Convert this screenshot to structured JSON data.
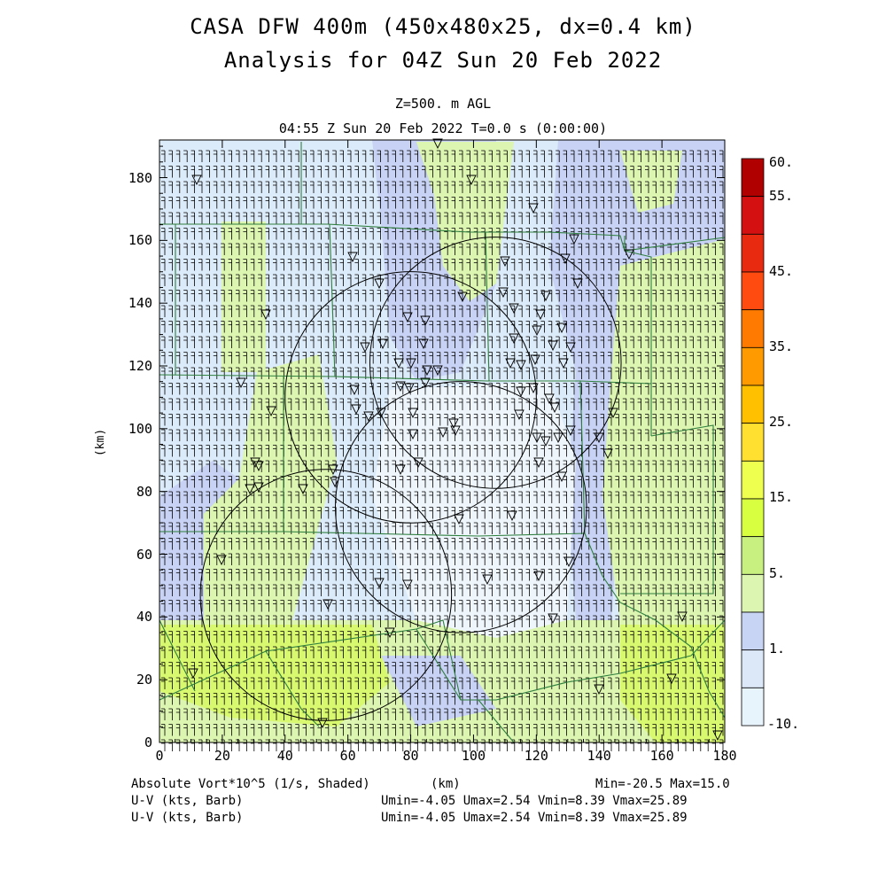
{
  "header": {
    "title_line1": "CASA DFW 400m (450x480x25, dx=0.4 km)",
    "title_line2": "Analysis for 04Z Sun 20 Feb 2022",
    "level": "Z=500. m AGL",
    "valid_time": "04:55 Z Sun 20 Feb 2022   T=0.0 s (0:00:00)"
  },
  "axes": {
    "x_label": "(km)",
    "y_label": "(km)",
    "x_range": [
      0,
      180
    ],
    "y_range": [
      0,
      192
    ],
    "x_ticks": [
      "0",
      "20",
      "40",
      "60",
      "80",
      "100",
      "120",
      "140",
      "160",
      "180"
    ],
    "y_ticks": [
      "0",
      "20",
      "40",
      "60",
      "80",
      "100",
      "120",
      "140",
      "160",
      "180"
    ]
  },
  "colorbar": {
    "labels": [
      "60.",
      "55.",
      "45.",
      "35.",
      "25.",
      "15.",
      "5.",
      "1.",
      "-10."
    ],
    "colors": [
      "#b00000",
      "#d41010",
      "#e82a10",
      "#ff4a10",
      "#ff7a00",
      "#ff9a00",
      "#ffc000",
      "#ffe030",
      "#eeff50",
      "#d8ff40",
      "#c8f080",
      "#dcf5b0",
      "#c8d4f4",
      "#dce8f8",
      "#e8f4fc"
    ],
    "unit": "Absolute Vort*10^5 (1/s)"
  },
  "footer": {
    "field_label": "Absolute Vort*10^5 (1/s, Shaded)",
    "axis_unit": "(km)",
    "minmax": "Min=-20.5 Max=15.0",
    "barb1_label": "U-V (kts, Barb)",
    "barb1_stats": "Umin=-4.05 Umax=2.54 Vmin=8.39 Vmax=25.89",
    "barb2_label": "U-V (kts, Barb)",
    "barb2_stats": "Umin=-4.05 Umax=2.54 Vmin=8.39 Vmax=25.89"
  },
  "radars": [
    {
      "name": "radar-range-ring-1",
      "center_km": [
        107,
        121
      ],
      "radius_km": 40
    },
    {
      "name": "radar-range-ring-2",
      "center_km": [
        80,
        110
      ],
      "radius_km": 40
    },
    {
      "name": "radar-range-ring-3",
      "center_km": [
        96,
        75
      ],
      "radius_km": 40
    },
    {
      "name": "radar-range-ring-4",
      "center_km": [
        53,
        47
      ],
      "radius_km": 40
    }
  ]
}
